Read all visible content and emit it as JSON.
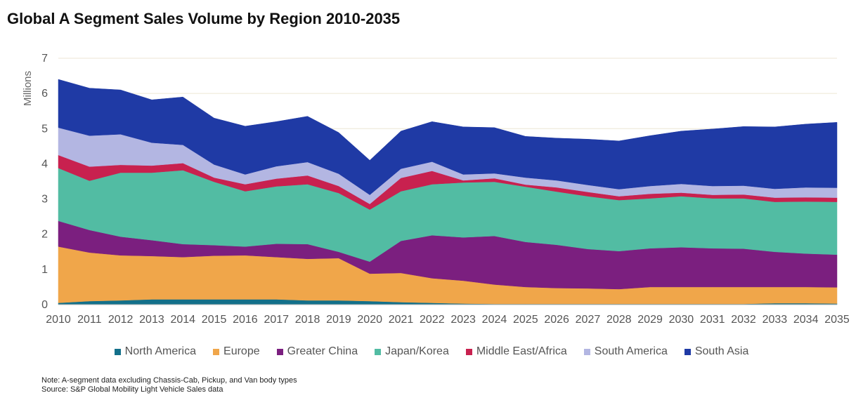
{
  "chart_data": {
    "type": "area",
    "stacked": true,
    "title": "Global A Segment Sales Volume by Region 2010-2035",
    "ylabel": "Millions",
    "xlabel": "",
    "ylim": [
      0,
      7
    ],
    "yticks": [
      0,
      1,
      2,
      3,
      4,
      5,
      6,
      7
    ],
    "x": [
      "2010",
      "2011",
      "2012",
      "2013",
      "2014",
      "2015",
      "2016",
      "2017",
      "2018",
      "2019",
      "2020",
      "2021",
      "2022",
      "2023",
      "2024",
      "2025",
      "2026",
      "2027",
      "2028",
      "2029",
      "2030",
      "2031",
      "2032",
      "2033",
      "2034",
      "2035"
    ],
    "grid": true,
    "legend_position": "bottom",
    "series": [
      {
        "name": "North America",
        "color": "#13708a",
        "values": [
          0.05,
          0.1,
          0.12,
          0.15,
          0.15,
          0.15,
          0.15,
          0.15,
          0.12,
          0.12,
          0.1,
          0.07,
          0.05,
          0.03,
          0.02,
          0.02,
          0.02,
          0.02,
          0.02,
          0.02,
          0.02,
          0.02,
          0.02,
          0.04,
          0.04,
          0.03
        ]
      },
      {
        "name": "Europe",
        "color": "#f0a64a",
        "values": [
          1.6,
          1.38,
          1.28,
          1.23,
          1.2,
          1.24,
          1.25,
          1.2,
          1.18,
          1.2,
          0.78,
          0.83,
          0.7,
          0.65,
          0.55,
          0.48,
          0.45,
          0.44,
          0.42,
          0.48,
          0.48,
          0.48,
          0.48,
          0.46,
          0.46,
          0.46
        ]
      },
      {
        "name": "Greater China",
        "color": "#7b1f7f",
        "values": [
          0.73,
          0.64,
          0.53,
          0.45,
          0.37,
          0.3,
          0.25,
          0.38,
          0.42,
          0.18,
          0.34,
          0.91,
          1.22,
          1.23,
          1.38,
          1.28,
          1.23,
          1.12,
          1.08,
          1.1,
          1.13,
          1.1,
          1.09,
          1.0,
          0.95,
          0.93
        ]
      },
      {
        "name": "Japan/Korea",
        "color": "#52bca3",
        "values": [
          1.5,
          1.4,
          1.82,
          1.92,
          2.1,
          1.8,
          1.57,
          1.63,
          1.7,
          1.67,
          1.48,
          1.41,
          1.45,
          1.56,
          1.54,
          1.57,
          1.51,
          1.5,
          1.45,
          1.42,
          1.45,
          1.42,
          1.43,
          1.42,
          1.48,
          1.5
        ]
      },
      {
        "name": "Middle East/Africa",
        "color": "#c8214f",
        "values": [
          0.37,
          0.4,
          0.22,
          0.2,
          0.2,
          0.12,
          0.2,
          0.22,
          0.25,
          0.2,
          0.16,
          0.38,
          0.38,
          0.06,
          0.1,
          0.06,
          0.12,
          0.12,
          0.11,
          0.13,
          0.1,
          0.1,
          0.11,
          0.12,
          0.12,
          0.12
        ]
      },
      {
        "name": "South America",
        "color": "#b3b6e2",
        "values": [
          0.78,
          0.88,
          0.87,
          0.65,
          0.52,
          0.37,
          0.28,
          0.35,
          0.38,
          0.35,
          0.26,
          0.26,
          0.26,
          0.17,
          0.14,
          0.2,
          0.2,
          0.2,
          0.2,
          0.22,
          0.25,
          0.25,
          0.25,
          0.25,
          0.28,
          0.28
        ]
      },
      {
        "name": "South Asia",
        "color": "#1f3aa5",
        "values": [
          1.37,
          1.35,
          1.26,
          1.22,
          1.36,
          1.32,
          1.37,
          1.27,
          1.3,
          1.17,
          0.98,
          1.07,
          1.14,
          1.35,
          1.3,
          1.17,
          1.2,
          1.3,
          1.37,
          1.43,
          1.5,
          1.62,
          1.68,
          1.76,
          1.8,
          1.86
        ]
      }
    ]
  },
  "notes": {
    "line1": "Note: A-segment data excluding Chassis-Cab, Pickup, and Van body types",
    "line2": "Source: S&P Global Mobility Light Vehicle Sales data"
  }
}
